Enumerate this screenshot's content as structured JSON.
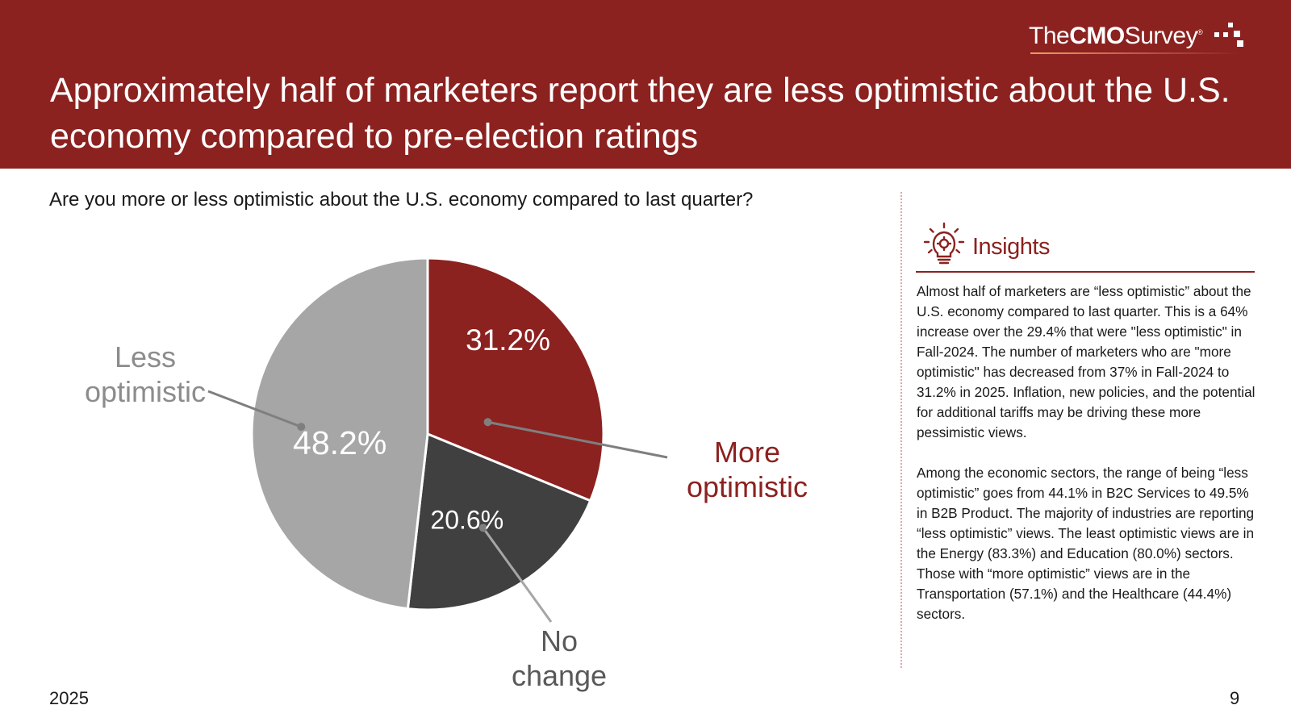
{
  "header": {
    "title": "Approximately half of marketers report they are less optimistic about the U.S. economy compared to pre-election ratings",
    "logo": {
      "the": "The",
      "cmo": "CMO",
      "survey": "Survey",
      "reg": "®"
    },
    "background_color": "#8b2220"
  },
  "question": "Are you more or less optimistic about the U.S. economy compared to last quarter?",
  "chart_data": {
    "type": "pie",
    "slices": [
      {
        "name": "More optimistic",
        "label_lines": [
          "More",
          "optimistic"
        ],
        "value": 31.2,
        "value_label": "31.2%",
        "color": "#8b2220",
        "name_color": "#8b2220"
      },
      {
        "name": "No change",
        "label_lines": [
          "No",
          "change"
        ],
        "value": 20.6,
        "value_label": "20.6%",
        "color": "#404040",
        "name_color": "#595959"
      },
      {
        "name": "Less optimistic",
        "label_lines": [
          "Less",
          "optimistic"
        ],
        "value": 48.2,
        "value_label": "48.2%",
        "color": "#a6a6a6",
        "name_color": "#8c8c8c"
      }
    ],
    "start_angle_deg": 0,
    "direction": "clockwise"
  },
  "insights": {
    "title": "Insights",
    "icon": "lightbulb-gear-icon",
    "paragraphs": [
      "Almost half of marketers are “less optimistic” about the U.S. economy compared to last quarter. This is a 64% increase over the 29.4% that were \"less optimistic\" in Fall-2024. The number of marketers who are \"more optimistic\" has decreased from 37% in Fall-2024 to 31.2% in 2025. Inflation, new policies, and the potential for additional tariffs may be driving these more pessimistic views.",
      "Among the economic sectors, the range of being “less optimistic” goes from 44.1% in B2C Services to 49.5% in B2B Product. The majority of industries are reporting “less optimistic” views. The least optimistic views are in the Energy (83.3%) and Education (80.0%) sectors. Those with “more optimistic” views are in the Transportation (57.1%) and the Healthcare (44.4%) sectors."
    ]
  },
  "footer": {
    "year": "2025",
    "page": "9"
  }
}
